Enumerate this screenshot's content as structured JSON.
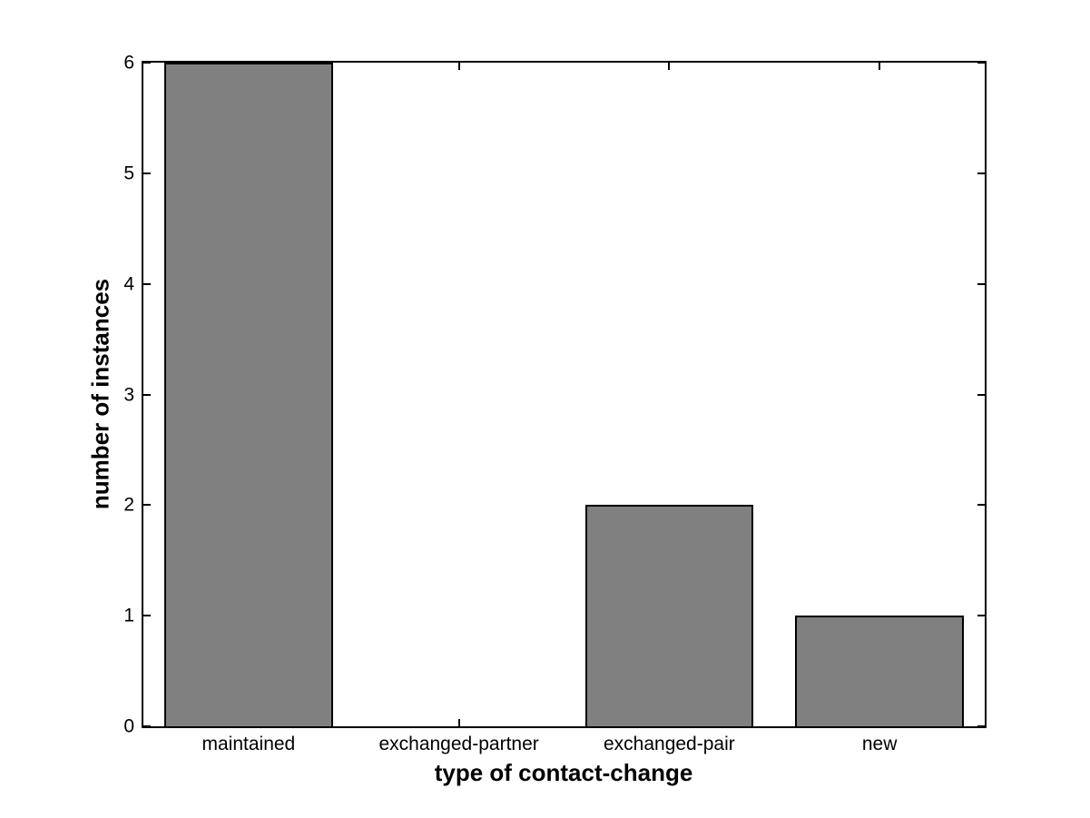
{
  "chart_data": {
    "type": "bar",
    "categories": [
      "maintained",
      "exchanged-partner",
      "exchanged-pair",
      "new"
    ],
    "values": [
      6,
      0,
      2,
      1
    ],
    "title": "",
    "xlabel": "type of contact-change",
    "ylabel": "number of instances",
    "ylim": [
      0,
      6
    ],
    "yticks": [
      0,
      1,
      2,
      3,
      4,
      5,
      6
    ],
    "bar_width_fraction": 0.8,
    "bar_color": "#808080",
    "bar_edge_color": "#000000",
    "axis_color": "#000000",
    "background_color": "#ffffff",
    "grid": false,
    "legend": null,
    "tick_direction": "in",
    "box": true
  }
}
